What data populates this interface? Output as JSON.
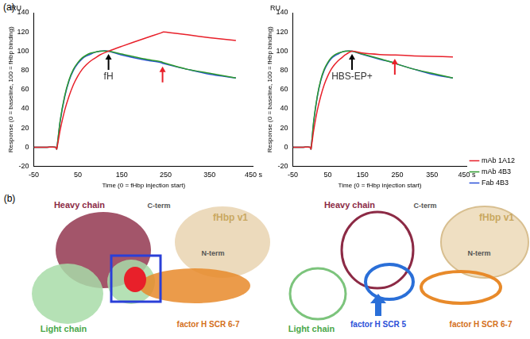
{
  "chart_data": [
    {
      "type": "line",
      "panel": "(a)",
      "y_unit_label": "RU",
      "xlabel": "Time (0 = fHbp injection start)",
      "ylabel": "Response (0 = baseline, 100 = fHbp binding)",
      "x": [
        -50,
        -20,
        0,
        2,
        10,
        20,
        30,
        40,
        50,
        60,
        70,
        80,
        90,
        100,
        120,
        150,
        200,
        240,
        245,
        300,
        350,
        410
      ],
      "series": [
        {
          "name": "mAb 1A12",
          "color": "#e8202a",
          "values": [
            0,
            0,
            0,
            -2,
            18,
            38,
            53,
            65,
            74,
            81,
            86,
            90,
            93,
            96,
            100,
            105,
            113,
            119,
            120,
            117,
            114,
            111
          ]
        },
        {
          "name": "mAb 4B3",
          "color": "#2e9a2e",
          "values": [
            0,
            0,
            0,
            -2,
            28,
            53,
            70,
            81,
            88,
            93,
            96,
            98,
            99,
            100,
            100,
            97,
            92,
            89,
            88,
            81,
            77,
            72
          ]
        },
        {
          "name": "Fab 4B3",
          "color": "#2a4fd8",
          "values": [
            0,
            0,
            0,
            -2,
            27,
            52,
            69,
            80,
            87,
            92,
            95,
            97,
            99,
            100,
            100,
            96,
            91,
            88,
            87,
            81,
            76,
            72
          ]
        }
      ],
      "xlim": [
        -50,
        450
      ],
      "xticks": [
        -50,
        50,
        150,
        250,
        350,
        {
          "value": 450,
          "label": "450 s"
        }
      ],
      "ylim": [
        -20,
        140
      ],
      "yticks": [
        -20,
        0,
        20,
        40,
        60,
        80,
        100,
        120,
        140
      ],
      "grid": false,
      "legend": false,
      "annotations": [
        {
          "text": "fH",
          "x": 120,
          "y": 97,
          "color": "#000000"
        },
        {
          "x": 243,
          "y": 84,
          "color": "#e8202a"
        }
      ]
    },
    {
      "type": "line",
      "y_unit_label": "RU",
      "xlabel": "Time (0 = fHbp injection start)",
      "ylabel": "Response (0 = baseline, 100 = fHbp binding)",
      "x": [
        -50,
        -20,
        0,
        2,
        10,
        20,
        30,
        40,
        50,
        60,
        70,
        80,
        90,
        100,
        120,
        150,
        200,
        240,
        245,
        300,
        350,
        410
      ],
      "series": [
        {
          "name": "mAb 1A12",
          "color": "#e8202a",
          "values": [
            0,
            0,
            0,
            -2,
            18,
            38,
            53,
            65,
            74,
            81,
            86,
            90,
            93,
            96,
            100,
            98,
            96.5,
            96,
            96,
            95,
            94.5,
            94
          ]
        },
        {
          "name": "mAb 4B3",
          "color": "#2e9a2e",
          "values": [
            0,
            0,
            0,
            -2,
            28,
            53,
            70,
            81,
            88,
            93,
            96,
            98,
            99,
            100,
            100,
            97,
            92,
            88,
            87,
            81,
            77,
            72
          ]
        },
        {
          "name": "Fab 4B3",
          "color": "#2a4fd8",
          "values": [
            0,
            0,
            0,
            -2,
            27,
            52,
            69,
            80,
            87,
            92,
            95,
            97,
            99,
            100,
            100,
            96.5,
            91.5,
            88,
            87,
            81,
            76,
            72
          ]
        }
      ],
      "xlim": [
        -50,
        450
      ],
      "xticks": [
        -50,
        50,
        150,
        250,
        350,
        {
          "value": 450,
          "label": "450 s"
        }
      ],
      "ylim": [
        -20,
        140
      ],
      "yticks": [
        -20,
        0,
        20,
        40,
        60,
        80,
        100,
        120,
        140
      ],
      "grid": false,
      "legend": "right",
      "annotations": [
        {
          "text": "HBS-EP+",
          "x": 120,
          "y": 97,
          "color": "#000000"
        },
        {
          "x": 243,
          "y": 92,
          "color": "#e8202a"
        }
      ]
    }
  ],
  "diagram": {
    "panel": "(b)",
    "left": {
      "heavy_chain": "Heavy chain",
      "c_term": "C-term",
      "fhbp": "fHbp v1",
      "n_term": "N-term",
      "light_chain": "Light chain",
      "scr67": "factor H SCR 6-7"
    },
    "right": {
      "heavy_chain": "Heavy chain",
      "c_term": "C-term",
      "fhbp": "fHbp v1",
      "n_term": "N-term",
      "light_chain": "Light chain",
      "scr5": "factor H SCR 5",
      "scr67": "factor H SCR 6-7"
    }
  }
}
